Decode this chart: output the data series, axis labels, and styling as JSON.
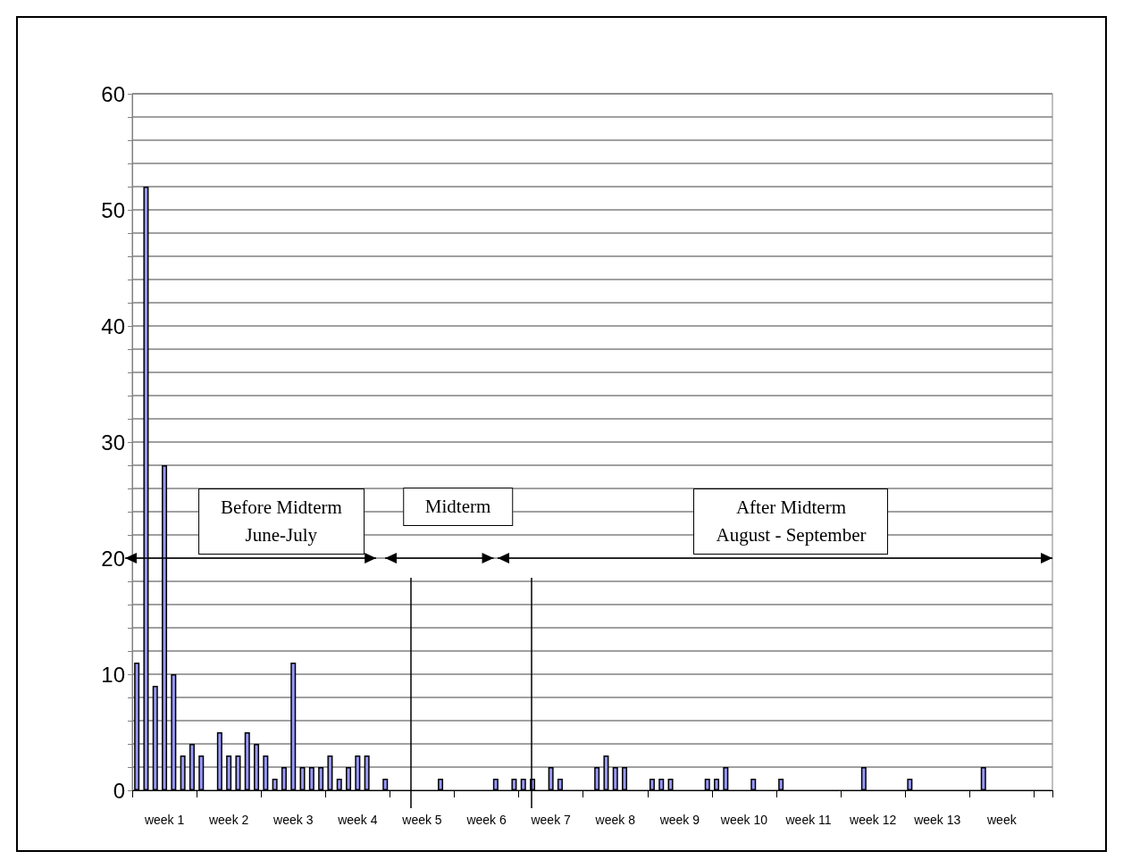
{
  "chart_data": {
    "type": "bar",
    "categories": [
      null,
      null,
      null,
      "week 1",
      null,
      null,
      null,
      null,
      null,
      null,
      "week 2",
      null,
      null,
      null,
      null,
      null,
      null,
      "week 3",
      null,
      null,
      null,
      null,
      null,
      null,
      "week 4",
      null,
      null,
      null,
      null,
      null,
      null,
      "week 5",
      null,
      null,
      null,
      null,
      null,
      null,
      "week 6",
      null,
      null,
      null,
      null,
      null,
      null,
      "week 7",
      null,
      null,
      null,
      null,
      null,
      null,
      "week 8",
      null,
      null,
      null,
      null,
      null,
      null,
      "week 9",
      null,
      null,
      null,
      null,
      null,
      null,
      "week 10",
      null,
      null,
      null,
      null,
      null,
      null,
      "week 11",
      null,
      null,
      null,
      null,
      null,
      null,
      "week 12",
      null,
      null,
      null,
      null,
      null,
      null,
      "week 13",
      null,
      null,
      null,
      null,
      null,
      null,
      "week",
      null,
      null,
      null,
      null,
      null
    ],
    "values": [
      11,
      52,
      9,
      28,
      10,
      3,
      4,
      3,
      0,
      5,
      3,
      3,
      5,
      4,
      3,
      1,
      2,
      11,
      2,
      2,
      2,
      3,
      1,
      2,
      3,
      3,
      0,
      1,
      0,
      0,
      0,
      0,
      0,
      1,
      0,
      0,
      0,
      0,
      0,
      1,
      0,
      1,
      1,
      1,
      0,
      2,
      1,
      0,
      0,
      0,
      2,
      3,
      2,
      2,
      0,
      0,
      1,
      1,
      1,
      0,
      0,
      0,
      1,
      1,
      2,
      0,
      0,
      1,
      0,
      0,
      1,
      0,
      0,
      0,
      0,
      0,
      0,
      0,
      0,
      2,
      0,
      0,
      0,
      0,
      1,
      0,
      0,
      0,
      0,
      0,
      0,
      0,
      2,
      0,
      0,
      0,
      0,
      0,
      0,
      0
    ],
    "color": "#9999ff",
    "ylim": [
      0,
      60
    ],
    "yticks": [
      0,
      {
        "value": 2,
        "label": null
      },
      {
        "value": 4,
        "label": null
      },
      {
        "value": 6,
        "label": null
      },
      {
        "value": 8,
        "label": null
      },
      10,
      {
        "value": 12,
        "label": null
      },
      {
        "value": 14,
        "label": null
      },
      {
        "value": 16,
        "label": null
      },
      {
        "value": 18,
        "label": null
      },
      20,
      {
        "value": 22,
        "label": null
      },
      {
        "value": 24,
        "label": null
      },
      {
        "value": 26,
        "label": null
      },
      {
        "value": 28,
        "label": null
      },
      30,
      {
        "value": 32,
        "label": null
      },
      {
        "value": 34,
        "label": null
      },
      {
        "value": 36,
        "label": null
      },
      {
        "value": 38,
        "label": null
      },
      40,
      {
        "value": 42,
        "label": null
      },
      {
        "value": 44,
        "label": null
      },
      {
        "value": 46,
        "label": null
      },
      {
        "value": 48,
        "label": null
      },
      50,
      {
        "value": 52,
        "label": null
      },
      {
        "value": 54,
        "label": null
      },
      {
        "value": 56,
        "label": null
      },
      {
        "value": 58,
        "label": null
      },
      60
    ],
    "grid": "y",
    "annotations": [
      "Before Midterm\nJune-July",
      "Midterm",
      "After Midterm\nAugust - September"
    ]
  }
}
